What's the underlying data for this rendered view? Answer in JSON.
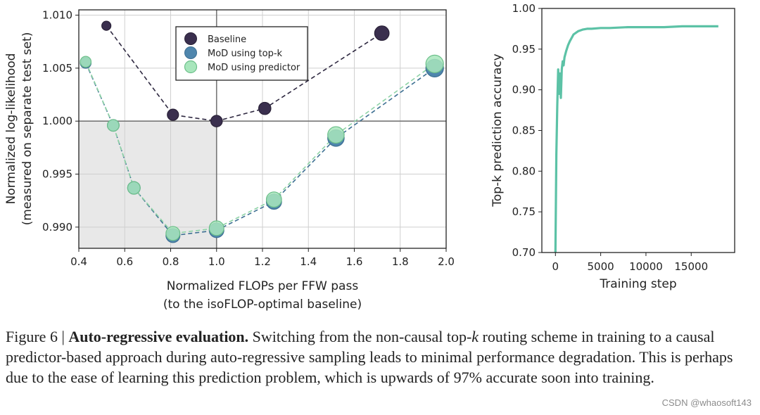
{
  "chart_data": [
    {
      "type": "line",
      "xlabel": "Normalized FLOPs per FFW pass",
      "xlabel2": "(to the isoFLOP-optimal baseline)",
      "ylabel": "Normalized log-likelihood",
      "ylabel2": "(measured on separate test set)",
      "xlim": [
        0.4,
        2.0
      ],
      "ylim": [
        0.988,
        1.0105
      ],
      "xticks": [
        0.4,
        0.6,
        0.8,
        1.0,
        1.2,
        1.4,
        1.6,
        1.8,
        2.0
      ],
      "xtick_labels": [
        "0.4",
        "0.6",
        "0.8",
        "1.0",
        "1.2",
        "1.4",
        "1.6",
        "1.8",
        "2.0"
      ],
      "yticks": [
        0.99,
        0.995,
        1.0,
        1.005,
        1.01
      ],
      "ytick_labels": [
        "0.990",
        "0.995",
        "1.000",
        "1.005",
        "1.010"
      ],
      "grid": true,
      "legend_position": "top-center",
      "shaded_region": {
        "x": [
          0.4,
          1.0
        ],
        "y": [
          0.988,
          1.0
        ]
      },
      "reference_lines": {
        "x": 1.0,
        "y": 1.0
      },
      "series": [
        {
          "name": "Baseline",
          "color": "#3a2f4e",
          "x": [
            0.52,
            0.81,
            1.0,
            1.21,
            1.72
          ],
          "y": [
            1.009,
            1.0006,
            1.0,
            1.0012,
            1.0083
          ],
          "size": [
            1,
            1.5,
            1.6,
            1.8,
            2.5
          ]
        },
        {
          "name": "MoD using top-k",
          "color": "#4f86ad",
          "x": [
            0.43,
            0.55,
            0.64,
            0.81,
            1.0,
            1.25,
            1.52,
            1.95
          ],
          "y": [
            1.0055,
            0.9996,
            0.9937,
            0.9892,
            0.9897,
            0.9924,
            0.9984,
            1.005
          ],
          "size": [
            1.2,
            1.4,
            1.6,
            2.0,
            2.2,
            2.4,
            2.8,
            3.2
          ]
        },
        {
          "name": "MoD using predictor",
          "color": "#86d6a3",
          "x": [
            0.43,
            0.55,
            0.64,
            0.81,
            1.0,
            1.25,
            1.52,
            1.95
          ],
          "y": [
            1.0056,
            0.9996,
            0.9937,
            0.9894,
            0.9899,
            0.9926,
            0.9987,
            1.0054
          ],
          "size": [
            1.2,
            1.4,
            1.6,
            2.0,
            2.2,
            2.4,
            2.8,
            3.2
          ]
        }
      ]
    },
    {
      "type": "line",
      "xlabel": "Training step",
      "ylabel": "Top-k prediction accuracy",
      "xlim": [
        -1500,
        19800
      ],
      "ylim": [
        0.7,
        1.0
      ],
      "xticks": [
        0,
        5000,
        10000,
        15000
      ],
      "xtick_labels": [
        "0",
        "5000",
        "10000",
        "15000"
      ],
      "yticks": [
        0.7,
        0.75,
        0.8,
        0.85,
        0.9,
        0.95,
        1.0
      ],
      "ytick_labels": [
        "0.70",
        "0.75",
        "0.80",
        "0.85",
        "0.90",
        "0.95",
        "1.00"
      ],
      "grid": false,
      "series": [
        {
          "color": "#5cc2a6",
          "x": [
            0,
            100,
            200,
            300,
            400,
            500,
            600,
            700,
            800,
            900,
            1000,
            1200,
            1400,
            1600,
            1800,
            2000,
            2500,
            3000,
            3500,
            4000,
            5000,
            6000,
            8000,
            10000,
            12000,
            14000,
            16000,
            18000
          ],
          "y": [
            0.7,
            0.82,
            0.88,
            0.925,
            0.895,
            0.92,
            0.89,
            0.925,
            0.935,
            0.93,
            0.94,
            0.948,
            0.955,
            0.96,
            0.964,
            0.968,
            0.972,
            0.974,
            0.975,
            0.975,
            0.976,
            0.976,
            0.977,
            0.977,
            0.977,
            0.978,
            0.978,
            0.978
          ]
        }
      ]
    }
  ],
  "caption": {
    "prefix": "Figure 6 | ",
    "title": "Auto-regressive evaluation.",
    "body_1": " Switching from the non-causal top-",
    "italic_k": "k",
    "body_2": " routing scheme in training to a causal predictor-based approach during auto-regressive sampling leads to minimal performance degradation. This is perhaps due to the ease of learning this prediction problem, which is upwards of 97% accurate soon into training."
  },
  "watermark": "CSDN @whaosoft143"
}
